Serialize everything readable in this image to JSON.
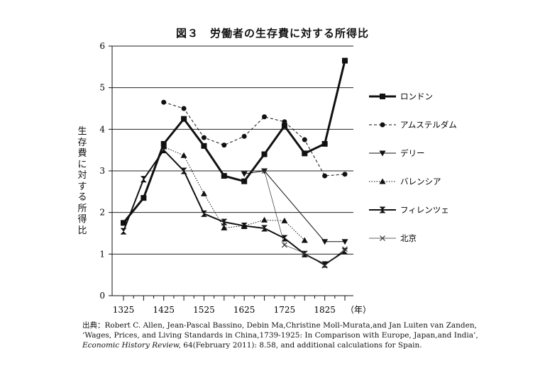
{
  "figure_title": "図３　労働者の生存費に対する所得比",
  "source": {
    "line1": "出典：Robert C. Allen, Jean-Pascal Bassino, Debin Ma,Christine Moll-Murata,and Jan Luiten van Zanden,",
    "line2": "‘Wages, Prices, and Living Standards in China,1739-1925: In Comparison with Europe, Japan,and India’,",
    "journal": "Economic History Review,",
    "line3_rest": " 64(February 2011): 8.58, and additional calculations for Spain."
  },
  "chart_data": {
    "type": "line",
    "title": "図３　労働者の生存費に対する所得比",
    "ylabel": "生存費に対する所得比",
    "xlabel": "（年）",
    "x_tick_values": [
      1325,
      1425,
      1525,
      1625,
      1725,
      1825
    ],
    "x_tick_labels": [
      "1325",
      "1425",
      "1525",
      "1625",
      "1725",
      "1825"
    ],
    "x_axis_unit": "（年）",
    "xlim": [
      1325,
      1875
    ],
    "ylim": [
      0,
      6
    ],
    "y_ticks": [
      0,
      1,
      2,
      3,
      4,
      5,
      6
    ],
    "grid": "horizontal",
    "legend_position": "right",
    "series": [
      {
        "name": "ロンドン",
        "style": "solid",
        "width": 3,
        "marker": "square",
        "color": "#111111",
        "x": [
          1325,
          1375,
          1425,
          1475,
          1525,
          1575,
          1625,
          1675,
          1725,
          1775,
          1825,
          1875
        ],
        "y": [
          1.75,
          2.35,
          3.65,
          4.25,
          3.6,
          2.88,
          2.75,
          3.4,
          4.08,
          3.42,
          3.65,
          5.65
        ]
      },
      {
        "name": "アムステルダム",
        "style": "dashed",
        "width": 1,
        "marker": "circle",
        "color": "#111111",
        "x": [
          1425,
          1475,
          1525,
          1575,
          1625,
          1675,
          1725,
          1775,
          1825,
          1875
        ],
        "y": [
          4.65,
          4.5,
          3.8,
          3.62,
          3.83,
          4.3,
          4.18,
          3.75,
          2.88,
          2.92
        ]
      },
      {
        "name": "デリー",
        "style": "solid",
        "width": 1,
        "marker": "triangle-down",
        "color": "#111111",
        "x": [
          1625,
          1675,
          1825,
          1875
        ],
        "y": [
          2.93,
          3.0,
          1.3,
          1.3
        ]
      },
      {
        "name": "バレンシア",
        "style": "dotted",
        "width": 1,
        "marker": "triangle-up",
        "color": "#111111",
        "x": [
          1425,
          1475,
          1525,
          1575,
          1625,
          1675,
          1725,
          1775
        ],
        "y": [
          3.58,
          3.37,
          2.45,
          1.63,
          1.68,
          1.82,
          1.8,
          1.33
        ]
      },
      {
        "name": "フィレンツェ",
        "style": "solid",
        "width": 2,
        "marker": "bowtie",
        "color": "#111111",
        "x": [
          1325,
          1375,
          1425,
          1475,
          1525,
          1575,
          1625,
          1675,
          1725,
          1775,
          1825,
          1875
        ],
        "y": [
          1.55,
          2.8,
          3.5,
          3.0,
          1.97,
          1.77,
          1.68,
          1.62,
          1.38,
          1.0,
          0.75,
          1.07
        ]
      },
      {
        "name": "北京",
        "style": "solid",
        "width": 0.7,
        "marker": "x",
        "color": "#333333",
        "x": [
          1675,
          1725,
          1775,
          1825,
          1875
        ],
        "y": [
          3.0,
          1.22,
          1.02,
          0.72,
          1.12
        ]
      }
    ]
  }
}
